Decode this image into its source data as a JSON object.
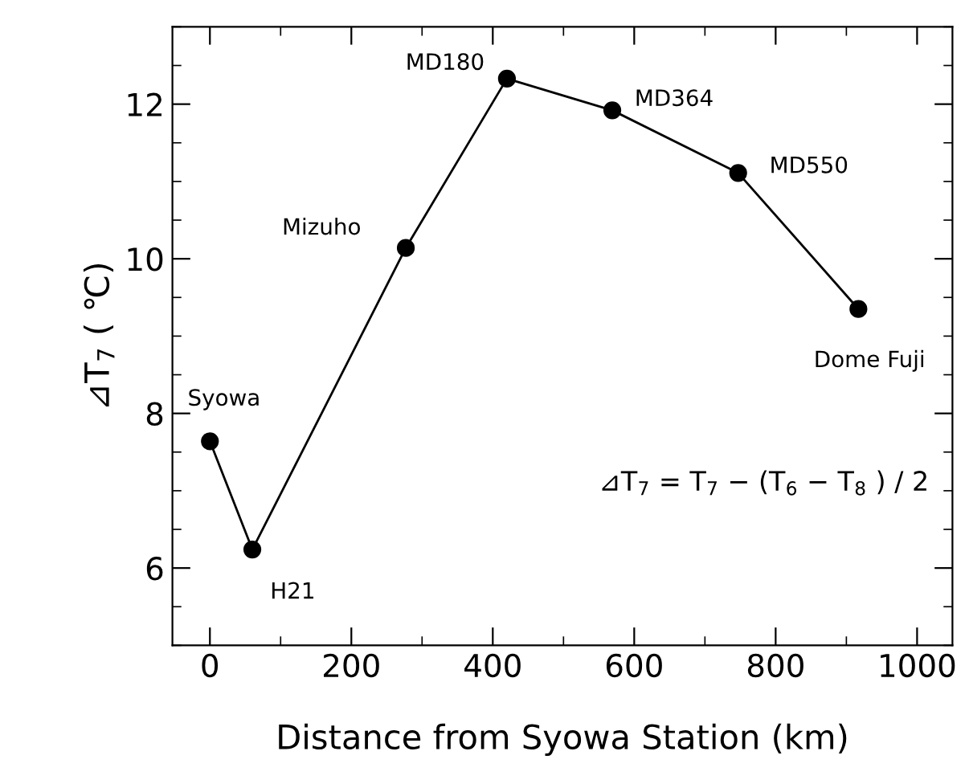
{
  "chart_data": {
    "type": "line",
    "xlabel": "Distance from Syowa Station (km)",
    "ylabel": "⊿T$_{7}$ ( ℃)",
    "x": [
      0,
      60,
      277,
      420,
      569,
      747,
      917
    ],
    "series": [
      {
        "color": "#000000",
        "values": [
          7.64,
          6.24,
          10.14,
          12.33,
          11.92,
          11.11,
          9.35
        ]
      }
    ],
    "marker": "circle",
    "line_style": "solid",
    "grid": false,
    "legend": false,
    "xlim": [
      -53,
      1050
    ],
    "ylim": [
      5,
      13
    ],
    "xticks": [
      0,
      200,
      400,
      600,
      800,
      1000
    ],
    "yticks": [
      6,
      8,
      10,
      12
    ],
    "annotations": [
      {
        "text": "Syowa",
        "x": 0,
        "y": 7.64
      },
      {
        "text": "H21",
        "x": 60,
        "y": 6.24
      },
      {
        "text": "Mizuho",
        "x": 277,
        "y": 10.14
      },
      {
        "text": "MD180",
        "x": 420,
        "y": 12.33
      },
      {
        "text": "MD364",
        "x": 569,
        "y": 11.92
      },
      {
        "text": "MD550",
        "x": 747,
        "y": 11.11
      },
      {
        "text": "Dome Fuji",
        "x": 917,
        "y": 9.35
      },
      "⊿T$_{7}$ = T$_{7}$ − (T$_{6}$ − T$_{8}$ ) / 2"
    ]
  }
}
